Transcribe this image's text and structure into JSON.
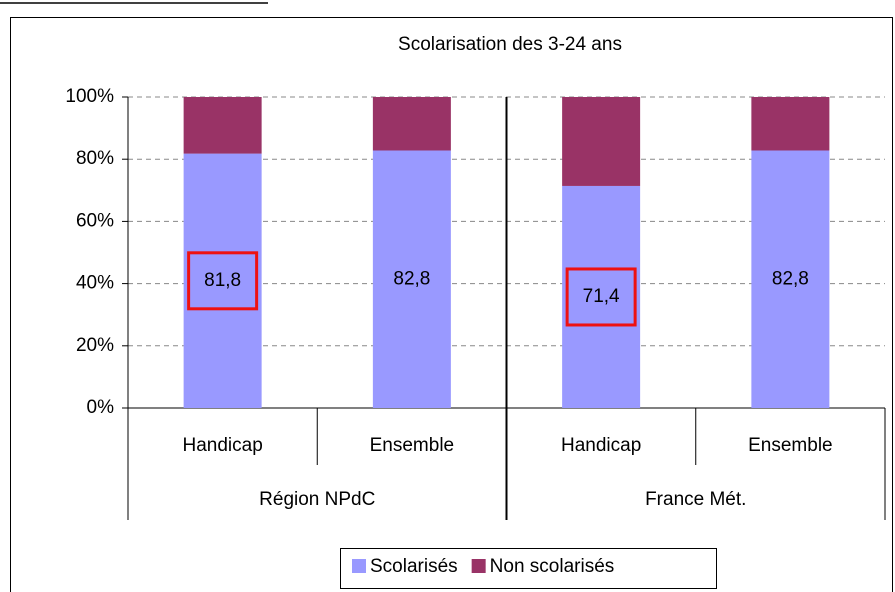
{
  "chart_data": {
    "type": "stacked_bar",
    "title": "Scolarisation des 3-24 ans",
    "categories": [
      "Handicap",
      "Ensemble",
      "Handicap",
      "Ensemble"
    ],
    "groups": [
      {
        "name": "Région NPdC",
        "size": 2
      },
      {
        "name": "France Mét.",
        "size": 2
      }
    ],
    "series": [
      {
        "name": "Scolarisés",
        "color": "#9999ff",
        "values": [
          81.8,
          82.8,
          71.4,
          82.8
        ],
        "value_labels": [
          "81,8",
          "82,8",
          "71,4",
          "82,8"
        ],
        "highlight": [
          true,
          false,
          true,
          false
        ]
      },
      {
        "name": "Non scolarisés",
        "color": "#993366",
        "values": [
          18.2,
          17.2,
          28.6,
          17.2
        ]
      }
    ],
    "ylim": [
      0,
      100
    ],
    "yticks": [
      {
        "value": 0,
        "label": "0%"
      },
      {
        "value": 20,
        "label": "20%"
      },
      {
        "value": 40,
        "label": "40%"
      },
      {
        "value": 60,
        "label": "60%"
      },
      {
        "value": 80,
        "label": "80%"
      },
      {
        "value": 100,
        "label": "100%"
      }
    ],
    "grid": true,
    "legend": "bottom"
  }
}
